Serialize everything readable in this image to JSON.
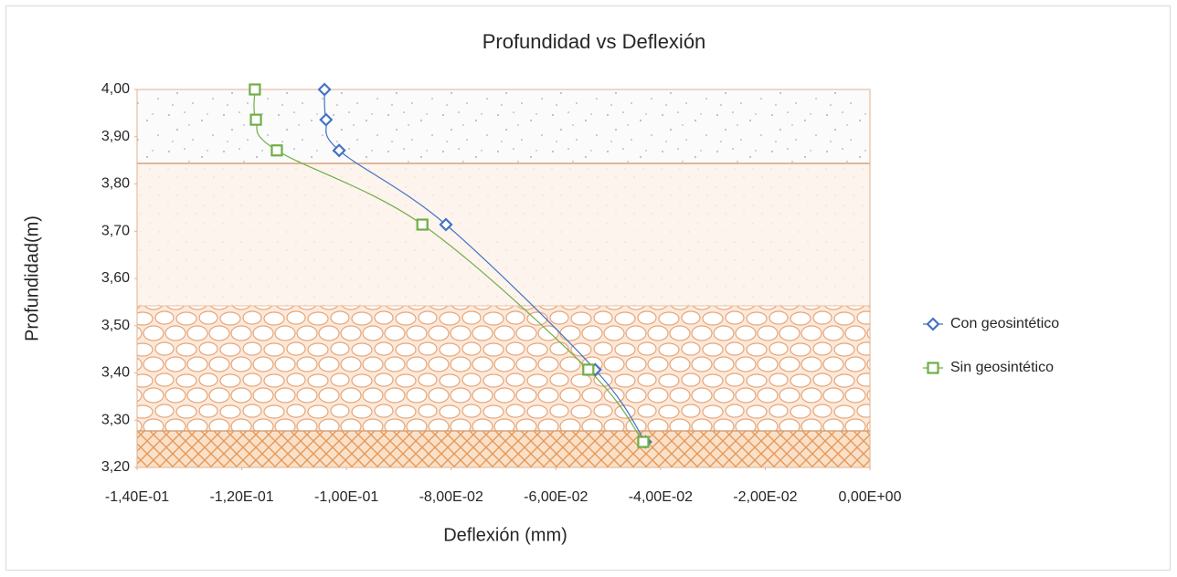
{
  "chart_data": {
    "type": "line",
    "title": "Profundidad vs Deflexión",
    "x_label": "Deflexión (mm)",
    "y_label": "Profundidad(m)",
    "xlim": [
      -0.14,
      0
    ],
    "xticks": [
      {
        "value": -0.14,
        "label": "-1,40E-01"
      },
      {
        "value": -0.12,
        "label": "-1,20E-01"
      },
      {
        "value": -0.1,
        "label": "-1,00E-01"
      },
      {
        "value": -0.08,
        "label": "-8,00E-02"
      },
      {
        "value": -0.06,
        "label": "-6,00E-02"
      },
      {
        "value": -0.04,
        "label": "-4,00E-02"
      },
      {
        "value": -0.02,
        "label": "-2,00E-02"
      },
      {
        "value": 0,
        "label": "0,00E+00"
      }
    ],
    "ylim": [
      3.2,
      4.0
    ],
    "yticks": [
      {
        "value": 3.2,
        "label": "3,20"
      },
      {
        "value": 3.3,
        "label": "3,30"
      },
      {
        "value": 3.4,
        "label": "3,40"
      },
      {
        "value": 3.5,
        "label": "3,50"
      },
      {
        "value": 3.6,
        "label": "3,60"
      },
      {
        "value": 3.7,
        "label": "3,70"
      },
      {
        "value": 3.8,
        "label": "3,80"
      },
      {
        "value": 3.9,
        "label": "3,90"
      },
      {
        "value": 4.0,
        "label": "4,00"
      }
    ],
    "series": [
      {
        "name": "Con geosintético",
        "color": "#4472c4",
        "marker": "diamond",
        "x": [
          -0.1042,
          -0.1039,
          -0.1014,
          -0.081,
          -0.0525,
          -0.0429
        ],
        "values": [
          4.0,
          3.936,
          3.871,
          3.714,
          3.407,
          3.254
        ]
      },
      {
        "name": "Sin geosintético",
        "color": "#70ad47",
        "marker": "square",
        "x": [
          -0.1175,
          -0.1173,
          -0.1133,
          -0.0855,
          -0.0538,
          -0.0433
        ],
        "values": [
          4.0,
          3.936,
          3.871,
          3.714,
          3.407,
          3.254
        ]
      }
    ]
  }
}
